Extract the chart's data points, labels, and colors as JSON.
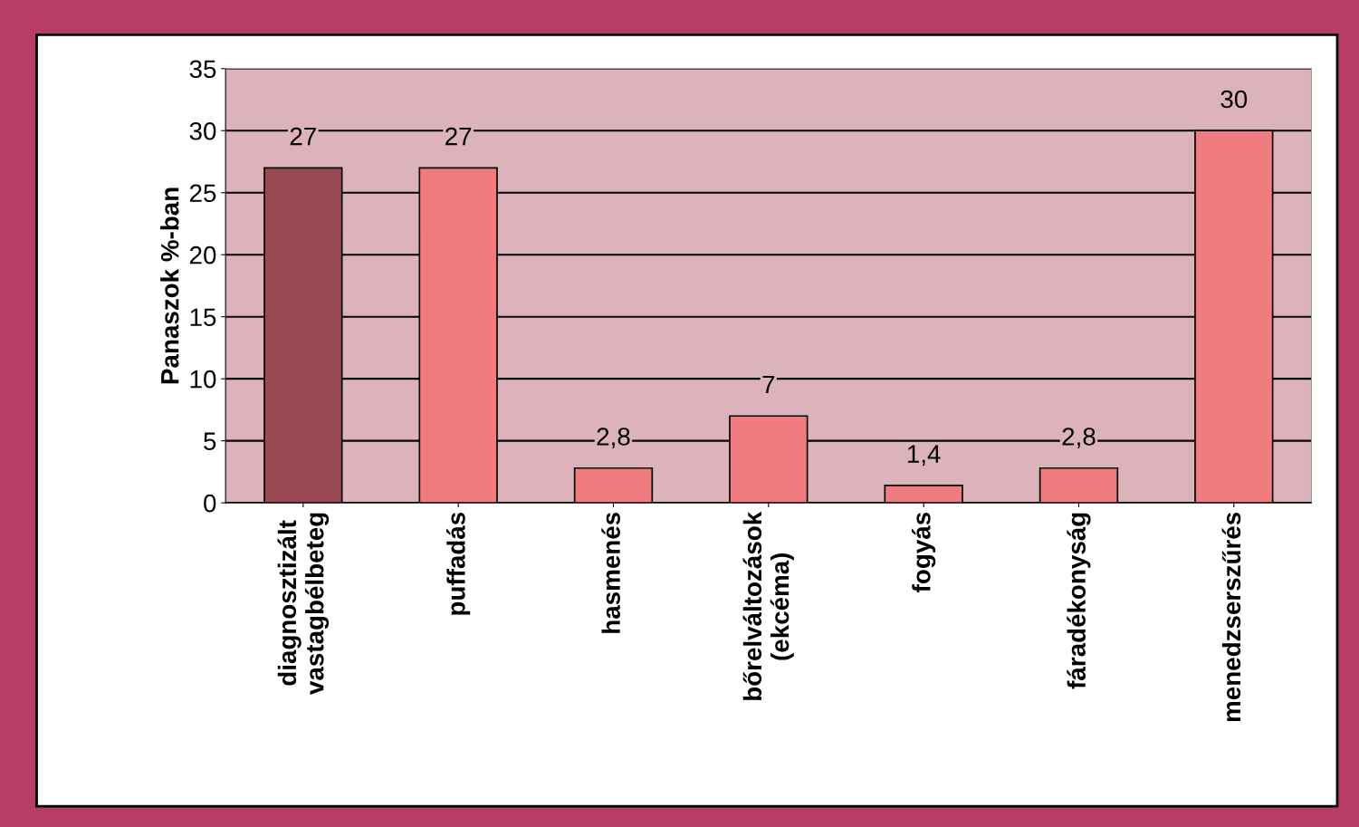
{
  "chart_data": {
    "type": "bar",
    "ylabel": "Panaszok %-ban",
    "categories": [
      "diagnosztizált\nvastagbélbeteg",
      "puffadás",
      "hasmenés",
      "bőrelváltozások\n(ekcéma)",
      "fogyás",
      "fáradékonyság",
      "menedzserszűrés"
    ],
    "values": [
      27,
      27,
      2.8,
      7,
      1.4,
      2.8,
      30
    ],
    "value_labels": [
      "27",
      "27",
      "2,8",
      "7",
      "1,4",
      "2,8",
      "30"
    ],
    "colors": [
      "#9a4a52",
      "#f07c80",
      "#f07c80",
      "#f07c80",
      "#f07c80",
      "#f07c80",
      "#f07c80"
    ],
    "ylim": [
      0,
      35
    ],
    "yticks": [
      0,
      5,
      10,
      15,
      20,
      25,
      30,
      35
    ],
    "grid": "y"
  }
}
